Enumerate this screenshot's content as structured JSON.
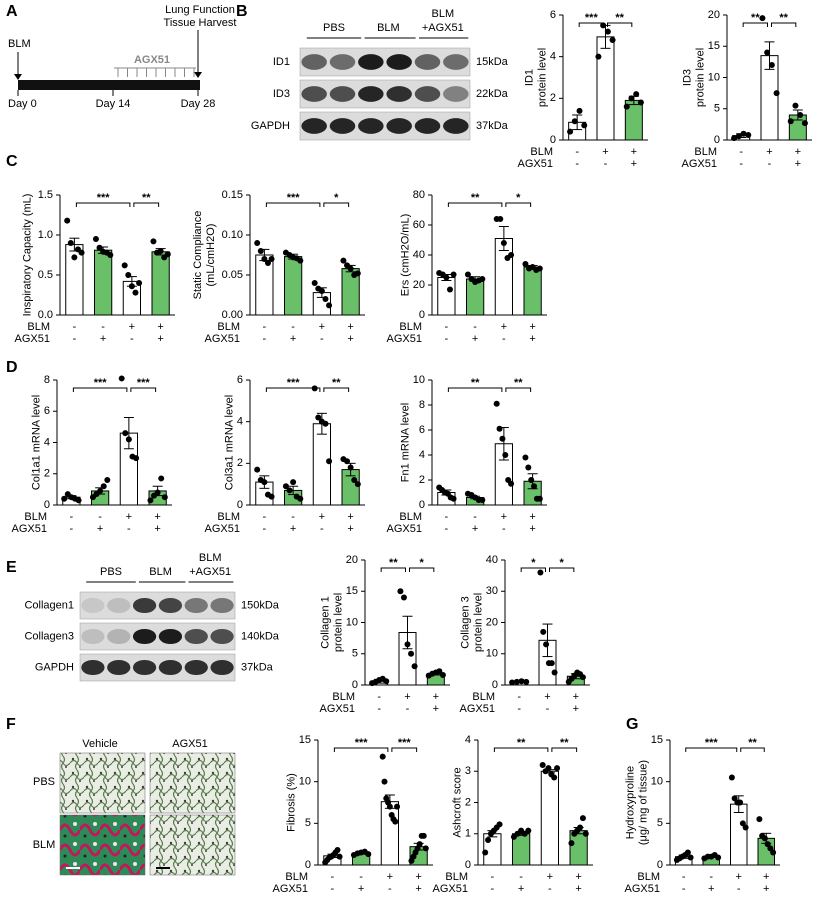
{
  "panel_labels": [
    "A",
    "B",
    "C",
    "D",
    "E",
    "F",
    "G"
  ],
  "timeline": {
    "start": "BLM",
    "end_lines": [
      "Lung Function",
      "Tissue Harvest"
    ],
    "treatment": "AGX51",
    "days": [
      "Day 0",
      "Day 14",
      "Day 28"
    ]
  },
  "blot_b": {
    "groups": [
      "PBS",
      "BLM"
    ],
    "combo": [
      "BLM",
      "+AGX51"
    ],
    "rows": [
      "ID1",
      "ID3",
      "GAPDH"
    ],
    "sizes": [
      "15kDa",
      "22kDa",
      "37kDa"
    ]
  },
  "blot_e": {
    "groups": [
      "PBS",
      "BLM"
    ],
    "combo": [
      "BLM",
      "+AGX51"
    ],
    "rows": [
      "Collagen1",
      "Collagen3",
      "GAPDH"
    ],
    "sizes": [
      "150kDa",
      "140kDa",
      "37kDa"
    ]
  },
  "histology": {
    "columns": [
      "Vehicle",
      "AGX51"
    ],
    "rows": [
      "PBS",
      "BLM"
    ]
  },
  "chart_data": [
    {
      "type": "bar",
      "ylabel": [
        "ID1",
        "protein level"
      ],
      "ylim": [
        0,
        6
      ],
      "yticks": [
        0,
        2,
        4,
        6
      ],
      "values": [
        0.85,
        4.95,
        1.9
      ],
      "errors": [
        0.35,
        0.55,
        0.2
      ],
      "bar_colors": [
        "#ffffff",
        "#ffffff",
        "#6abf69"
      ],
      "points": [
        [
          0.4,
          0.9,
          1.4,
          0.7
        ],
        [
          4.0,
          5.5,
          5.2,
          4.8
        ],
        [
          1.6,
          2.0,
          2.2,
          1.8
        ]
      ],
      "significance": [
        {
          "label": "***",
          "between": [
            0,
            1
          ]
        },
        {
          "label": "**",
          "between": [
            1,
            2
          ]
        }
      ],
      "conditions": [
        {
          "name": "BLM",
          "signs": [
            "-",
            "+",
            "+"
          ]
        },
        {
          "name": "AGX51",
          "signs": [
            "-",
            "-",
            "+"
          ]
        }
      ]
    },
    {
      "type": "bar",
      "ylabel": [
        "ID3",
        "protein level"
      ],
      "ylim": [
        0,
        20
      ],
      "yticks": [
        0,
        5,
        10,
        15,
        20
      ],
      "values": [
        0.7,
        13.5,
        4.0
      ],
      "errors": [
        0.3,
        2.2,
        0.8
      ],
      "bar_colors": [
        "#ffffff",
        "#ffffff",
        "#6abf69"
      ],
      "points": [
        [
          0.3,
          0.6,
          1.0,
          0.8
        ],
        [
          19.5,
          14,
          12,
          7.5
        ],
        [
          3,
          5.5,
          4,
          2.7
        ]
      ],
      "significance": [
        {
          "label": "**",
          "between": [
            0,
            1
          ]
        },
        {
          "label": "**",
          "between": [
            1,
            2
          ]
        }
      ],
      "conditions": [
        {
          "name": "BLM",
          "signs": [
            "-",
            "+",
            "+"
          ]
        },
        {
          "name": "AGX51",
          "signs": [
            "-",
            "-",
            "+"
          ]
        }
      ]
    },
    {
      "type": "bar",
      "ylabel": [
        "Inspiratory Capacity (mL)"
      ],
      "ylim": [
        0,
        1.5
      ],
      "yticks": [
        {
          "value": 0,
          "label": "0.0"
        },
        0.5,
        {
          "value": 1,
          "label": "1.0"
        },
        1.5
      ],
      "values": [
        0.88,
        0.81,
        0.42,
        0.79
      ],
      "errors": [
        0.08,
        0.04,
        0.06,
        0.04
      ],
      "bar_colors": [
        "#ffffff",
        "#6abf69",
        "#ffffff",
        "#6abf69"
      ],
      "points": [
        [
          1.18,
          0.9,
          0.72,
          0.82,
          0.78
        ],
        [
          0.95,
          0.84,
          0.79,
          0.78,
          0.75
        ],
        [
          0.62,
          0.5,
          0.36,
          0.28,
          0.4
        ],
        [
          0.92,
          0.78,
          0.8,
          0.72,
          0.76
        ]
      ],
      "significance": [
        {
          "label": "***",
          "between": [
            0,
            2
          ]
        },
        {
          "label": "**",
          "between": [
            2,
            3
          ]
        }
      ],
      "conditions": [
        {
          "name": "BLM",
          "signs": [
            "-",
            "-",
            "+",
            "+"
          ]
        },
        {
          "name": "AGX51",
          "signs": [
            "-",
            "+",
            "-",
            "+"
          ]
        }
      ]
    },
    {
      "type": "bar",
      "ylabel": [
        "Static Compliance",
        "(mL/cmH2O)"
      ],
      "ylim": [
        0,
        0.15
      ],
      "yticks": [
        {
          "value": 0,
          "label": "0.00"
        },
        {
          "value": 0.05,
          "label": "0.05"
        },
        {
          "value": 0.1,
          "label": "0.10"
        },
        {
          "value": 0.15,
          "label": "0.15"
        }
      ],
      "values": [
        0.075,
        0.073,
        0.028,
        0.058
      ],
      "errors": [
        0.007,
        0.003,
        0.006,
        0.004
      ],
      "bar_colors": [
        "#ffffff",
        "#6abf69",
        "#ffffff",
        "#6abf69"
      ],
      "points": [
        [
          0.09,
          0.08,
          0.07,
          0.065,
          0.07
        ],
        [
          0.078,
          0.075,
          0.072,
          0.071,
          0.068
        ],
        [
          0.04,
          0.033,
          0.03,
          0.02,
          0.012
        ],
        [
          0.068,
          0.062,
          0.058,
          0.05,
          0.052
        ]
      ],
      "significance": [
        {
          "label": "***",
          "between": [
            0,
            2
          ]
        },
        {
          "label": "*",
          "between": [
            2,
            3
          ]
        }
      ],
      "conditions": [
        {
          "name": "BLM",
          "signs": [
            "-",
            "-",
            "+",
            "+"
          ]
        },
        {
          "name": "AGX51",
          "signs": [
            "-",
            "+",
            "-",
            "+"
          ]
        }
      ]
    },
    {
      "type": "bar",
      "ylabel": [
        "Ers (cmH2O/mL)"
      ],
      "ylim": [
        0,
        80
      ],
      "yticks": [
        0,
        20,
        40,
        60,
        80
      ],
      "values": [
        25,
        24,
        51,
        32
      ],
      "errors": [
        2,
        1.5,
        8,
        1
      ],
      "bar_colors": [
        "#ffffff",
        "#6abf69",
        "#ffffff",
        "#6abf69"
      ],
      "points": [
        [
          28,
          27,
          25,
          17,
          27
        ],
        [
          27,
          24,
          22,
          23,
          24
        ],
        [
          64,
          64,
          48,
          38,
          40
        ],
        [
          34,
          31,
          32,
          30,
          31
        ]
      ],
      "significance": [
        {
          "label": "**",
          "between": [
            0,
            2
          ]
        },
        {
          "label": "*",
          "between": [
            2,
            3
          ]
        }
      ],
      "conditions": [
        {
          "name": "BLM",
          "signs": [
            "-",
            "-",
            "+",
            "+"
          ]
        },
        {
          "name": "AGX51",
          "signs": [
            "-",
            "+",
            "-",
            "+"
          ]
        }
      ]
    },
    {
      "type": "bar",
      "ylabel": [
        "Col1a1 mRNA level"
      ],
      "ylim": [
        0,
        8
      ],
      "yticks": [
        0,
        2,
        4,
        6,
        8
      ],
      "values": [
        0.5,
        0.9,
        4.6,
        0.9
      ],
      "errors": [
        0.1,
        0.2,
        1.0,
        0.3
      ],
      "bar_colors": [
        "#ffffff",
        "#6abf69",
        "#ffffff",
        "#6abf69"
      ],
      "points": [
        [
          0.4,
          0.7,
          0.5,
          0.4,
          0.3
        ],
        [
          0.5,
          0.7,
          0.9,
          1.2,
          1.6
        ],
        [
          8.1,
          4.6,
          4.2,
          3.1,
          3.0
        ],
        [
          0.3,
          0.6,
          0.8,
          1.7,
          0.5
        ]
      ],
      "significance": [
        {
          "label": "***",
          "between": [
            0,
            2
          ]
        },
        {
          "label": "***",
          "between": [
            2,
            3
          ]
        }
      ],
      "conditions": [
        {
          "name": "BLM",
          "signs": [
            "-",
            "-",
            "+",
            "+"
          ]
        },
        {
          "name": "AGX51",
          "signs": [
            "-",
            "+",
            "-",
            "+"
          ]
        }
      ]
    },
    {
      "type": "bar",
      "ylabel": [
        "Col3a1 mRNA level"
      ],
      "ylim": [
        0,
        6
      ],
      "yticks": [
        0,
        2,
        4,
        6
      ],
      "values": [
        1.1,
        0.7,
        3.9,
        1.7
      ],
      "errors": [
        0.3,
        0.2,
        0.5,
        0.3
      ],
      "bar_colors": [
        "#ffffff",
        "#6abf69",
        "#ffffff",
        "#6abf69"
      ],
      "points": [
        [
          1.7,
          1.2,
          1.1,
          0.5,
          0.4
        ],
        [
          0.9,
          0.7,
          1.1,
          0.4,
          0.3
        ],
        [
          5.6,
          4.2,
          4.0,
          3.9,
          2.1
        ],
        [
          2.2,
          2.1,
          1.8,
          1.2,
          1.0
        ]
      ],
      "significance": [
        {
          "label": "***",
          "between": [
            0,
            2
          ]
        },
        {
          "label": "**",
          "between": [
            2,
            3
          ]
        }
      ],
      "conditions": [
        {
          "name": "BLM",
          "signs": [
            "-",
            "-",
            "+",
            "+"
          ]
        },
        {
          "name": "AGX51",
          "signs": [
            "-",
            "+",
            "-",
            "+"
          ]
        }
      ]
    },
    {
      "type": "bar",
      "ylabel": [
        "Fn1 mRNA level"
      ],
      "ylim": [
        0,
        10
      ],
      "yticks": [
        0,
        2,
        4,
        6,
        8,
        10
      ],
      "values": [
        1.0,
        0.6,
        4.9,
        1.9
      ],
      "errors": [
        0.2,
        0.1,
        1.3,
        0.6
      ],
      "bar_colors": [
        "#ffffff",
        "#6abf69",
        "#ffffff",
        "#6abf69"
      ],
      "points": [
        [
          1.4,
          1.2,
          1.0,
          0.9,
          0.6,
          0.5
        ],
        [
          0.9,
          0.8,
          0.6,
          0.4,
          0.4
        ],
        [
          8.1,
          6.1,
          5.3,
          4.0,
          2.0,
          1.7
        ],
        [
          3.8,
          3.0,
          2.0,
          1.5,
          0.5,
          0.5
        ]
      ],
      "significance": [
        {
          "label": "**",
          "between": [
            0,
            2
          ]
        },
        {
          "label": "**",
          "between": [
            2,
            3
          ]
        }
      ],
      "conditions": [
        {
          "name": "BLM",
          "signs": [
            "-",
            "-",
            "+",
            "+"
          ]
        },
        {
          "name": "AGX51",
          "signs": [
            "-",
            "+",
            "-",
            "+"
          ]
        }
      ]
    },
    {
      "type": "bar",
      "ylabel": [
        "Collagen 1",
        "protein level"
      ],
      "ylim": [
        0,
        20
      ],
      "yticks": [
        0,
        5,
        10,
        15,
        20
      ],
      "values": [
        0.6,
        8.4,
        1.8
      ],
      "errors": [
        0.3,
        2.6,
        0.2
      ],
      "bar_colors": [
        "#ffffff",
        "#ffffff",
        "#6abf69"
      ],
      "points": [
        [
          0.3,
          0.5,
          0.8,
          1.0,
          0.6
        ],
        [
          15,
          14,
          6.5,
          5,
          3
        ],
        [
          1.5,
          1.8,
          2.0,
          2.2,
          1.6
        ]
      ],
      "significance": [
        {
          "label": "**",
          "between": [
            0,
            1
          ]
        },
        {
          "label": "*",
          "between": [
            1,
            2
          ]
        }
      ],
      "conditions": [
        {
          "name": "BLM",
          "signs": [
            "-",
            "+",
            "+"
          ]
        },
        {
          "name": "AGX51",
          "signs": [
            "-",
            "-",
            "+"
          ]
        }
      ]
    },
    {
      "type": "bar",
      "ylabel": [
        "Collagen 3",
        "protein level"
      ],
      "ylim": [
        0,
        40
      ],
      "yticks": [
        0,
        10,
        20,
        30,
        40
      ],
      "values": [
        1.0,
        14.3,
        2.8
      ],
      "errors": [
        0.2,
        5.2,
        0.8
      ],
      "bar_colors": [
        "#ffffff",
        "#ffffff",
        "#6abf69"
      ],
      "points": [
        [
          0.8,
          1.0,
          1.2,
          1.0
        ],
        [
          36,
          17,
          13,
          7,
          7,
          4
        ],
        [
          1,
          2,
          3,
          4,
          3.5,
          2.5
        ]
      ],
      "significance": [
        {
          "label": "*",
          "between": [
            0,
            1
          ]
        },
        {
          "label": "*",
          "between": [
            1,
            2
          ]
        }
      ],
      "conditions": [
        {
          "name": "BLM",
          "signs": [
            "-",
            "+",
            "+"
          ]
        },
        {
          "name": "AGX51",
          "signs": [
            "-",
            "-",
            "+"
          ]
        }
      ]
    },
    {
      "type": "bar",
      "ylabel": [
        "Fibrosis (%)"
      ],
      "ylim": [
        0,
        15
      ],
      "yticks": [
        0,
        5,
        10,
        15
      ],
      "values": [
        1.1,
        1.4,
        7.6,
        2.2
      ],
      "errors": [
        0.2,
        0.1,
        0.8,
        0.4
      ],
      "bar_colors": [
        "#ffffff",
        "#6abf69",
        "#ffffff",
        "#6abf69"
      ],
      "points": [
        [
          0.3,
          0.6,
          0.9,
          1.0,
          1.2,
          1.5,
          1.8,
          1.0
        ],
        [
          1.2,
          1.4,
          1.5,
          1.6,
          1.3
        ],
        [
          13,
          10,
          8,
          7.5,
          7,
          6,
          5.5,
          5.2,
          7
        ],
        [
          0.5,
          1,
          1.5,
          2,
          2.5,
          3.5,
          3.5,
          2
        ]
      ],
      "significance": [
        {
          "label": "***",
          "between": [
            0,
            2
          ]
        },
        {
          "label": "***",
          "between": [
            2,
            3
          ]
        }
      ],
      "conditions": [
        {
          "name": "BLM",
          "signs": [
            "-",
            "-",
            "+",
            "+"
          ]
        },
        {
          "name": "AGX51",
          "signs": [
            "-",
            "+",
            "-",
            "+"
          ]
        }
      ]
    },
    {
      "type": "bar",
      "ylabel": [
        "Ashcroft score"
      ],
      "ylim": [
        0,
        4
      ],
      "yticks": [
        0,
        1,
        2,
        3,
        4
      ],
      "values": [
        1.0,
        1.0,
        3.0,
        1.1
      ],
      "errors": [
        0.1,
        0.05,
        0.05,
        0.1
      ],
      "bar_colors": [
        "#ffffff",
        "#6abf69",
        "#ffffff",
        "#6abf69"
      ],
      "points": [
        [
          0.4,
          0.8,
          1.0,
          1.1,
          1.2,
          1.3
        ],
        [
          0.9,
          1.0,
          1.1,
          1.0,
          1.1
        ],
        [
          3.2,
          3.0,
          3.1,
          2.9,
          2.8,
          3.1
        ],
        [
          0.7,
          1.0,
          1.1,
          1.2,
          1.5,
          1.0
        ]
      ],
      "significance": [
        {
          "label": "**",
          "between": [
            0,
            2
          ]
        },
        {
          "label": "**",
          "between": [
            2,
            3
          ]
        }
      ],
      "conditions": [
        {
          "name": "BLM",
          "signs": [
            "-",
            "-",
            "+",
            "+"
          ]
        },
        {
          "name": "AGX51",
          "signs": [
            "-",
            "+",
            "-",
            "+"
          ]
        }
      ]
    },
    {
      "type": "bar",
      "ylabel": [
        "Hydroxyproline",
        "(μg/ mg of tissue)"
      ],
      "ylim": [
        0,
        15
      ],
      "yticks": [
        0,
        5,
        10,
        15
      ],
      "values": [
        1.0,
        1.0,
        7.3,
        3.2
      ],
      "errors": [
        0.2,
        0.1,
        1.0,
        0.6
      ],
      "bar_colors": [
        "#ffffff",
        "#6abf69",
        "#ffffff",
        "#6abf69"
      ],
      "points": [
        [
          0.6,
          0.8,
          1.0,
          1.2,
          1.5,
          0.9
        ],
        [
          0.8,
          1.0,
          1.0,
          1.2,
          0.9
        ],
        [
          10.5,
          8,
          7.5,
          7.5,
          5,
          4.5
        ],
        [
          5.5,
          3.5,
          3.2,
          2.5,
          2,
          1.5
        ]
      ],
      "significance": [
        {
          "label": "***",
          "between": [
            0,
            2
          ]
        },
        {
          "label": "**",
          "between": [
            2,
            3
          ]
        }
      ],
      "conditions": [
        {
          "name": "BLM",
          "signs": [
            "-",
            "-",
            "+",
            "+"
          ]
        },
        {
          "name": "AGX51",
          "signs": [
            "-",
            "+",
            "-",
            "+"
          ]
        }
      ]
    }
  ]
}
